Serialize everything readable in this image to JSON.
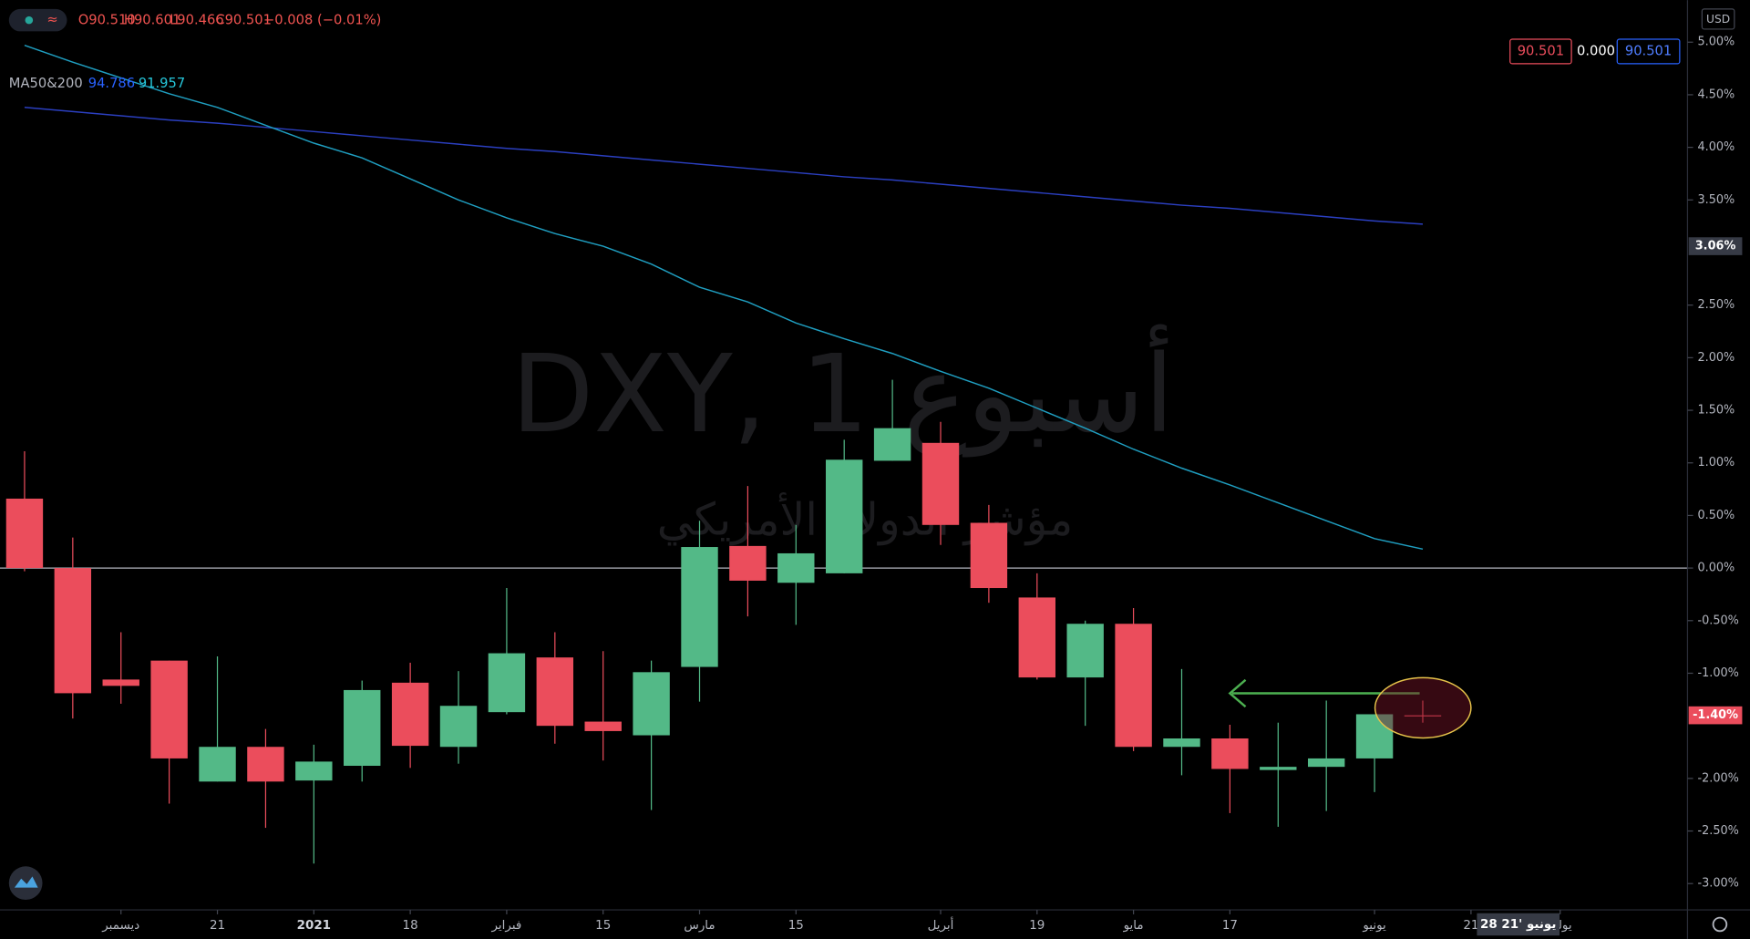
{
  "chart_data": {
    "type": "candlestick",
    "ohlc_labels": [
      "O90.510",
      "H90.601",
      "L90.466",
      "C90.501",
      "−0.008 (−0.01%)"
    ],
    "watermark": {
      "title": "DXY, 1 أسبوع",
      "subtitle": "مؤشر الدولار الأمريكي"
    },
    "currency": "USD",
    "price_boxes": [
      "90.501",
      "0.000",
      "90.501"
    ],
    "categories": [
      null,
      null,
      null,
      null,
      null,
      null,
      null,
      null,
      null,
      null,
      null,
      null,
      null,
      null,
      null,
      null,
      null,
      null,
      null,
      null,
      null,
      null,
      null,
      null,
      null,
      null,
      null,
      null,
      null,
      null
    ],
    "open": [
      0.66,
      0,
      -1.06,
      -0.88,
      -2.03,
      -1.7,
      -2.02,
      -1.88,
      -1.09,
      -1.7,
      -1.37,
      -0.85,
      -1.46,
      -1.59,
      -0.94,
      0.21,
      -0.14,
      -0.05,
      1.02,
      1.19,
      0.43,
      -0.28,
      -1.04,
      -0.53,
      -1.7,
      -1.62,
      -1.92,
      -1.89,
      -1.81,
      -1.4
    ],
    "high": [
      1.11,
      0.29,
      -0.61,
      -0.88,
      -0.84,
      -1.53,
      -1.68,
      -1.07,
      -0.9,
      -0.98,
      -0.19,
      -0.61,
      -0.79,
      -0.88,
      0.45,
      0.78,
      0.41,
      1.22,
      1.79,
      1.39,
      0.6,
      -0.05,
      -0.5,
      -0.38,
      -0.96,
      -1.49,
      -1.47,
      -1.26,
      -1.39,
      -1.26
    ],
    "low": [
      -0.03,
      -1.43,
      -1.29,
      -2.24,
      -2.03,
      -2.47,
      -2.81,
      -2.03,
      -1.9,
      -1.86,
      -1.39,
      -1.67,
      -1.83,
      -2.3,
      -1.27,
      -0.46,
      -0.54,
      -0.05,
      1.02,
      0.22,
      -0.33,
      -1.06,
      -1.5,
      -1.74,
      -1.97,
      -2.33,
      -2.46,
      -2.31,
      -2.13,
      -1.47
    ],
    "close": [
      0,
      -1.19,
      -1.12,
      -1.81,
      -1.7,
      -2.03,
      -1.84,
      -1.16,
      -1.69,
      -1.31,
      -0.81,
      -1.5,
      -1.55,
      -0.99,
      0.2,
      -0.12,
      0.14,
      1.03,
      1.33,
      0.41,
      -0.19,
      -1.04,
      -0.53,
      -1.7,
      -1.62,
      -1.91,
      -1.89,
      -1.81,
      -1.39,
      -1.41
    ],
    "up_color": "#53b987",
    "down_color": "#eb4d5c",
    "moving_averages": {
      "label": "MA50&200",
      "series": [
        {
          "value_label": "94.786",
          "color": "#2b3fc0",
          "text_color": "#2962ff",
          "values": [
            4.38,
            4.34,
            4.3,
            4.26,
            4.23,
            4.19,
            4.15,
            4.11,
            4.07,
            4.03,
            3.99,
            3.96,
            3.92,
            3.88,
            3.84,
            3.8,
            3.76,
            3.72,
            3.69,
            3.65,
            3.61,
            3.57,
            3.53,
            3.49,
            3.45,
            3.42,
            3.38,
            3.34,
            3.3,
            3.27
          ]
        },
        {
          "value_label": "91.957",
          "color": "#1f9ec0",
          "text_color": "#26c6da",
          "values": [
            4.97,
            4.81,
            4.66,
            4.51,
            4.38,
            4.21,
            4.04,
            3.9,
            3.7,
            3.5,
            3.33,
            3.18,
            3.06,
            2.89,
            2.67,
            2.53,
            2.33,
            2.18,
            2.04,
            1.87,
            1.71,
            1.52,
            1.33,
            1.13,
            0.95,
            0.79,
            0.62,
            0.45,
            0.28,
            0.18
          ]
        }
      ]
    },
    "hline": 0,
    "ylim": [
      -3.25,
      5.4
    ],
    "yticks": [
      {
        "value": 5,
        "label": "5.00%"
      },
      {
        "value": 4.5,
        "label": "4.50%"
      },
      {
        "value": 4,
        "label": "4.00%"
      },
      {
        "value": 3.5,
        "label": "3.50%"
      },
      {
        "value": 2.5,
        "label": "2.50%"
      },
      {
        "value": 2,
        "label": "2.00%"
      },
      {
        "value": 1.5,
        "label": "1.50%"
      },
      {
        "value": 1,
        "label": "1.00%"
      },
      {
        "value": 0.5,
        "label": "0.50%"
      },
      {
        "value": 0,
        "label": "0.00%"
      },
      {
        "value": -0.5,
        "label": "-0.50%"
      },
      {
        "value": -1,
        "label": "-1.00%"
      },
      {
        "value": -2,
        "label": "-2.00%"
      },
      {
        "value": -2.5,
        "label": "-2.50%"
      },
      {
        "value": -3,
        "label": "-3.00%"
      }
    ],
    "axis_markers": [
      {
        "value": 3.06,
        "label": "3.06%"
      },
      {
        "value": -1.4,
        "label": "-1.40%"
      }
    ],
    "xticks": [
      {
        "value": 2,
        "label": "ديسمبر"
      },
      {
        "value": 4,
        "label": "21"
      },
      {
        "value": 6,
        "label": "2021"
      },
      {
        "value": 8,
        "label": "18"
      },
      {
        "value": 10,
        "label": "فبراير"
      },
      {
        "value": 12,
        "label": "15"
      },
      {
        "value": 14,
        "label": "مارس"
      },
      {
        "value": 16,
        "label": "15"
      },
      {
        "value": 19,
        "label": "أبريل"
      },
      {
        "value": 21,
        "label": "19"
      },
      {
        "value": 23,
        "label": "مايو"
      },
      {
        "value": 25,
        "label": "17"
      },
      {
        "value": 28,
        "label": "يونيو"
      },
      {
        "value": 30,
        "label": "21"
      },
      {
        "value": 31.85,
        "label": "يوليو"
      }
    ],
    "crosshair_x": {
      "value": 30.98,
      "label": "28 يونيو '21"
    }
  }
}
